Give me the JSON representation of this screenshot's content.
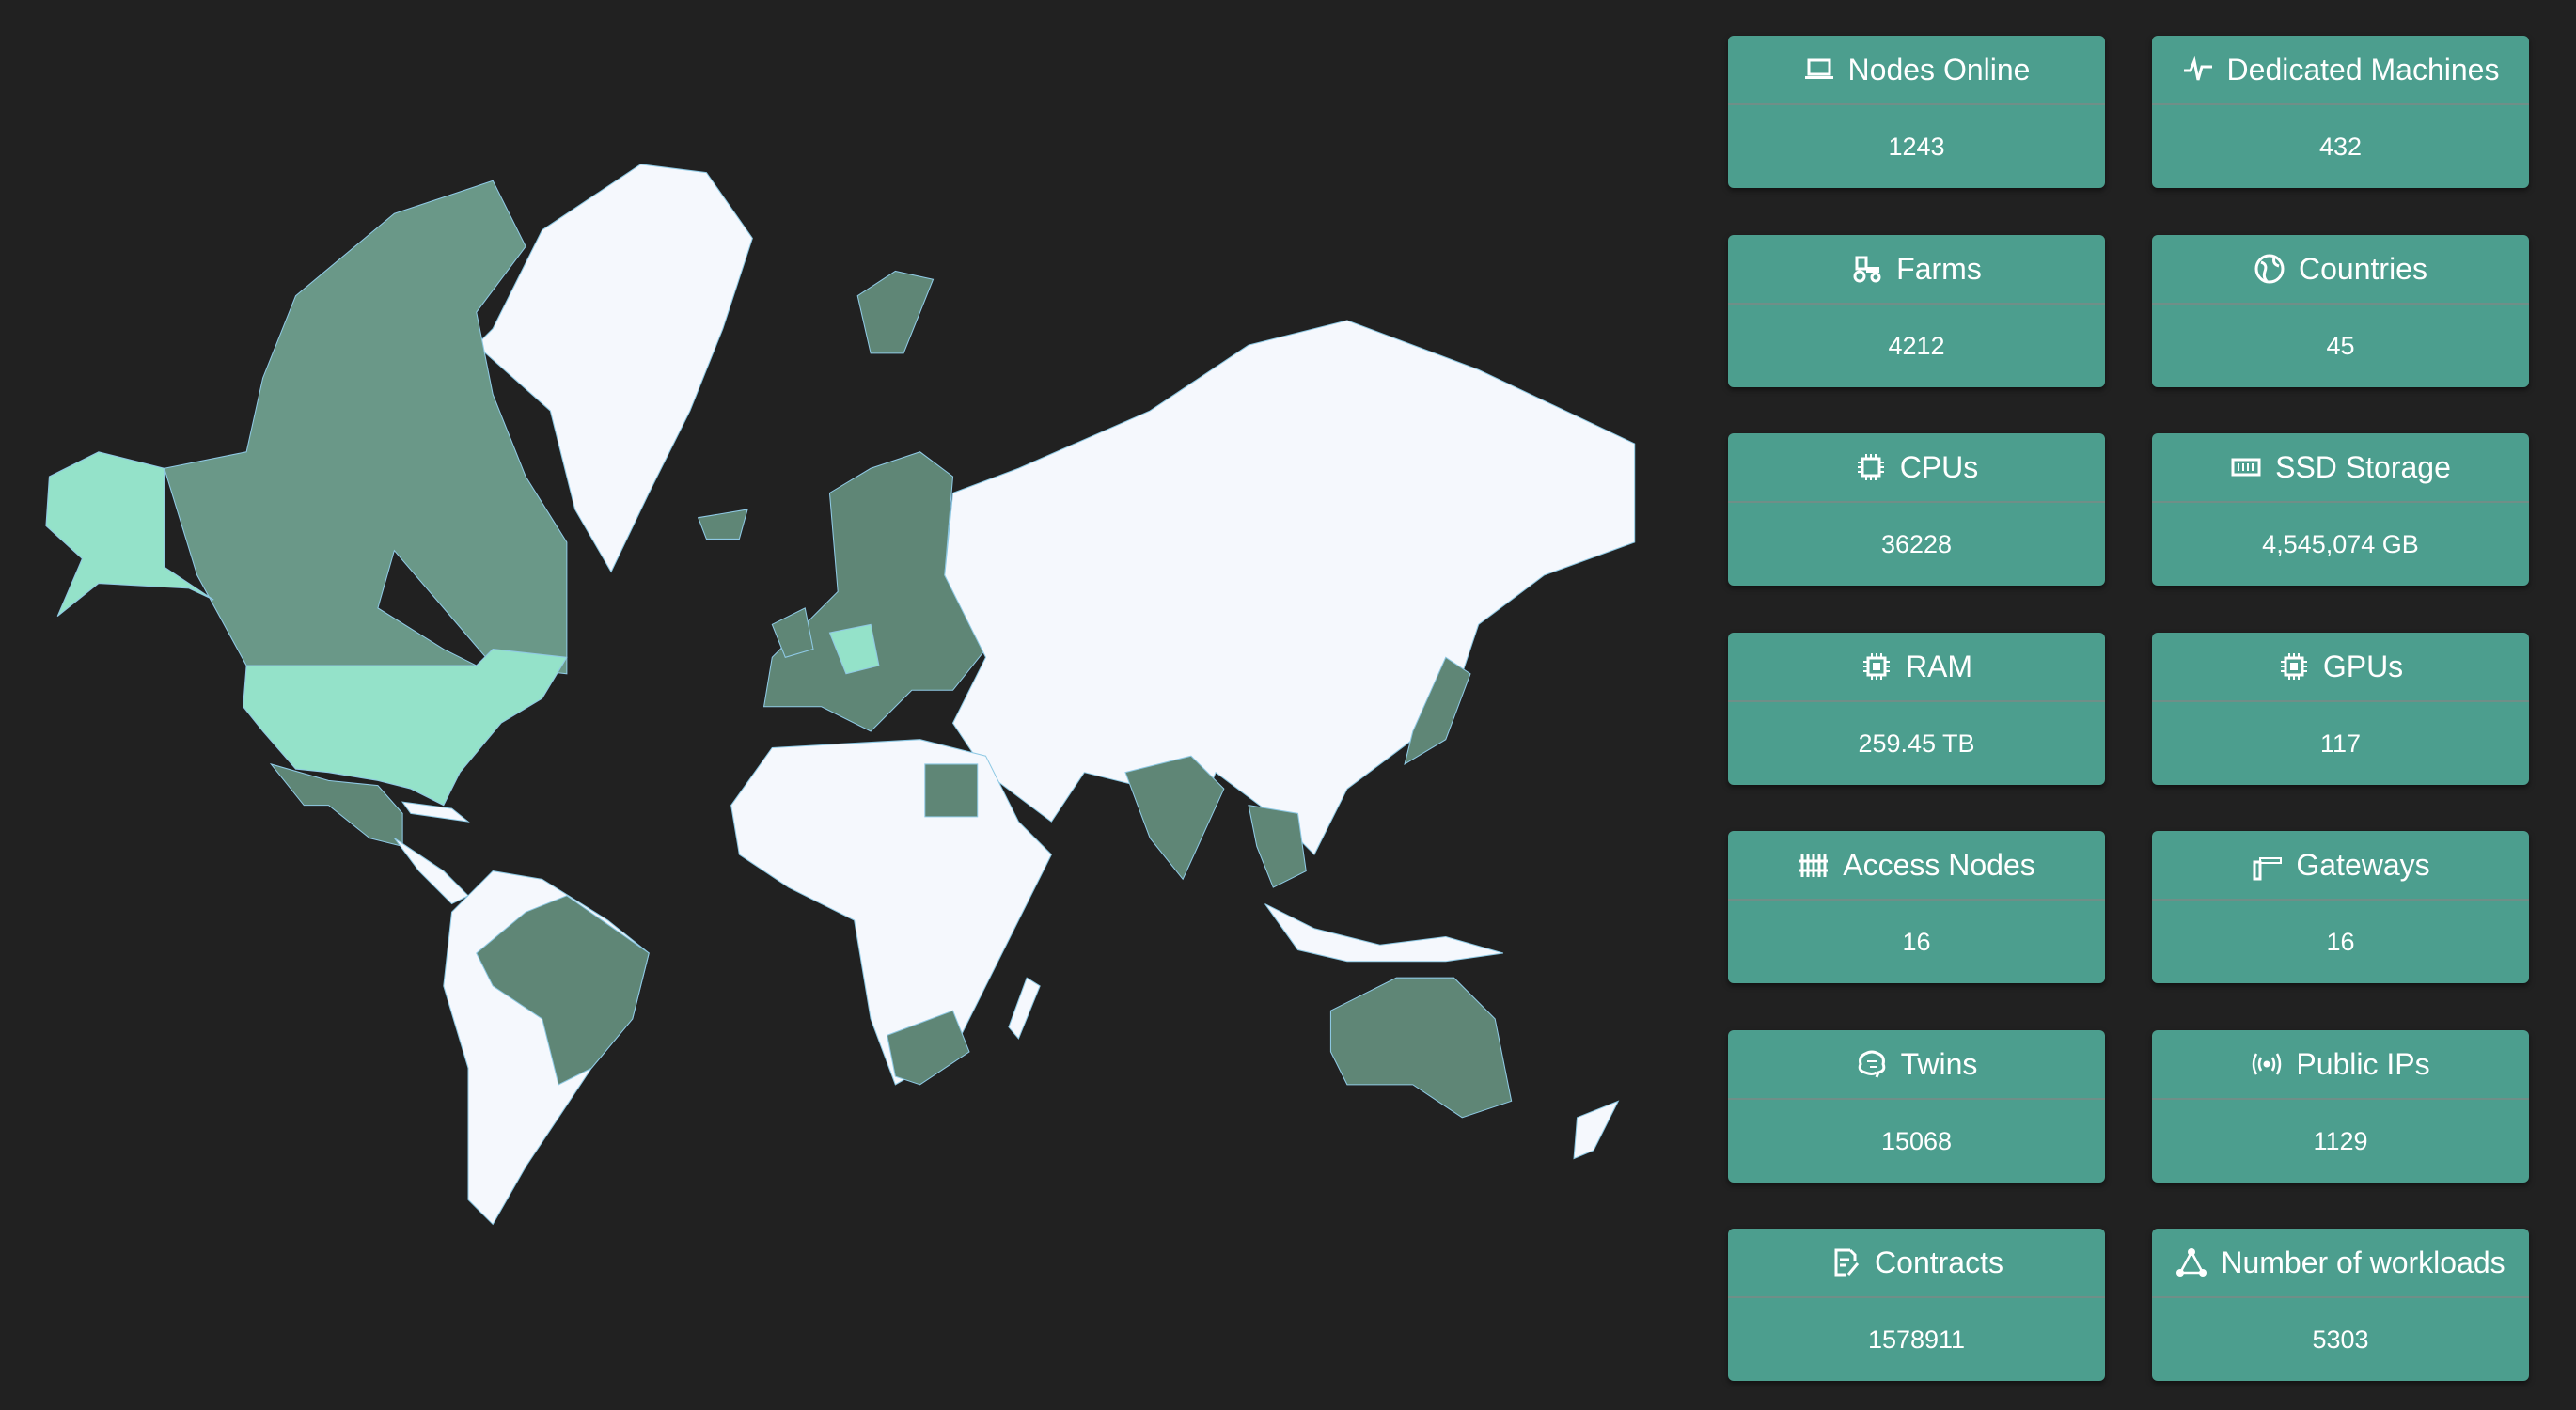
{
  "map": {
    "colors": {
      "background": "#212121",
      "land": "#f5f8fd",
      "highlight_dark": "#5f8676",
      "highlight_mid": "#6a9888",
      "highlight_light": "#94e2c9",
      "border": "#8fc9e4"
    }
  },
  "stats": [
    {
      "label": "Nodes Online",
      "value": "1243",
      "icon": "laptop-icon"
    },
    {
      "label": "Dedicated Machines",
      "value": "432",
      "icon": "pulse-icon"
    },
    {
      "label": "Farms",
      "value": "4212",
      "icon": "tractor-icon"
    },
    {
      "label": "Countries",
      "value": "45",
      "icon": "globe-icon"
    },
    {
      "label": "CPUs",
      "value": "36228",
      "icon": "cpu-icon"
    },
    {
      "label": "SSD Storage",
      "value": "4,545,074 GB",
      "icon": "ssd-icon"
    },
    {
      "label": "RAM",
      "value": "259.45 TB",
      "icon": "chip-icon"
    },
    {
      "label": "GPUs",
      "value": "117",
      "icon": "chip-icon"
    },
    {
      "label": "Access Nodes",
      "value": "16",
      "icon": "fence-icon"
    },
    {
      "label": "Gateways",
      "value": "16",
      "icon": "gate-icon"
    },
    {
      "label": "Twins",
      "value": "15068",
      "icon": "brain-icon"
    },
    {
      "label": "Public IPs",
      "value": "1129",
      "icon": "broadcast-icon"
    },
    {
      "label": "Contracts",
      "value": "1578911",
      "icon": "contract-icon"
    },
    {
      "label": "Number of workloads",
      "value": "5303",
      "icon": "graph-icon"
    }
  ],
  "card_color": "#4c9e8e"
}
